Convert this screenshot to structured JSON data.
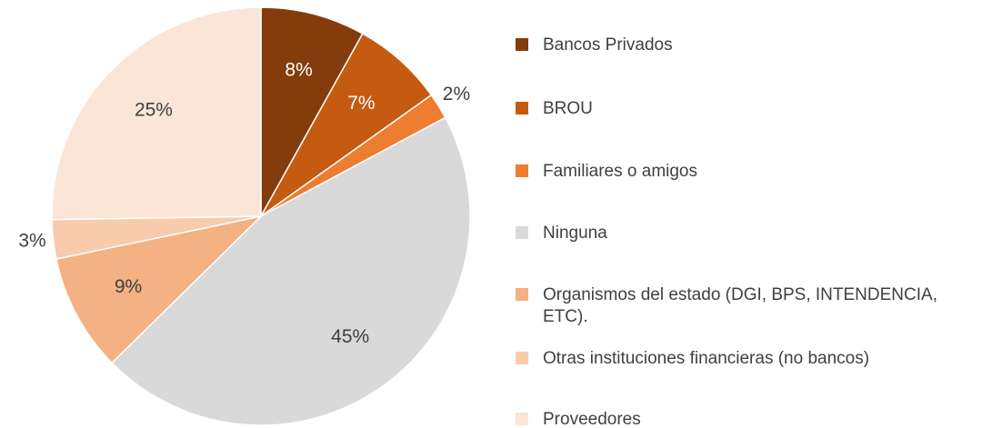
{
  "chart_data": {
    "type": "pie",
    "categories": [
      "Bancos Privados",
      "BROU",
      "Familiares o amigos",
      "Ninguna",
      "Organismos del estado (DGI, BPS, INTENDENCIA, ETC).",
      "Otras instituciones financieras (no bancos)",
      "Proveedores"
    ],
    "values": [
      8,
      7,
      2,
      45,
      9,
      3,
      25
    ],
    "value_labels": [
      "8%",
      "7%",
      "2%",
      "45%",
      "9%",
      "3%",
      "25%"
    ],
    "colors": [
      "#843c0c",
      "#c55a11",
      "#ed7d31",
      "#d9d9d9",
      "#f4b183",
      "#f8cbad",
      "#fbe5d6"
    ],
    "legend": "right"
  }
}
